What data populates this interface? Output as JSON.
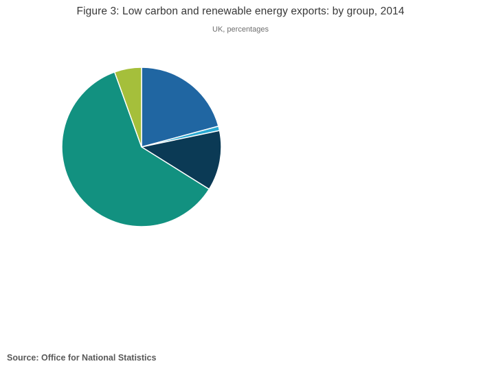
{
  "figure": {
    "title": "Figure 3: Low carbon and renewable energy exports: by group, 2014",
    "subtitle": "UK, percentages",
    "source": "Source: Office for National Statistics"
  },
  "chart_data": {
    "type": "pie",
    "title": "Figure 3: Low carbon and renewable energy exports: by group, 2014",
    "subtitle": "UK, percentages",
    "source": "Source: Office for National Statistics",
    "legend_position": "none",
    "data_labels_visible": false,
    "values_estimated_from_arc_angles": true,
    "direction": "clockwise",
    "start_angle_deg_from_top": 0,
    "slice_border_color": "#ffffff",
    "slices": [
      {
        "label": "",
        "value": 20.8,
        "color": "#2066a2"
      },
      {
        "label": "",
        "value": 0.9,
        "color": "#2aa9d2"
      },
      {
        "label": "",
        "value": 12.2,
        "color": "#0b3a55"
      },
      {
        "label": "",
        "value": 60.6,
        "color": "#129180"
      },
      {
        "label": "",
        "value": 5.5,
        "color": "#a5bf3b"
      }
    ]
  },
  "colors": {
    "background": "#ffffff",
    "title_text": "#373737",
    "subtitle_text": "#6e6e6e",
    "source_text": "#595959"
  }
}
